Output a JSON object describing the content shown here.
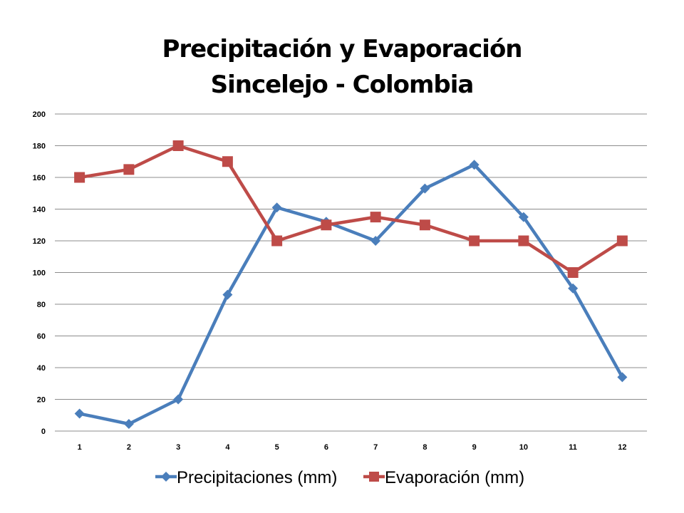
{
  "chart_data": {
    "type": "line",
    "title": [
      "Precipitación y Evaporación",
      "Sincelejo - Colombia"
    ],
    "xlabel": "",
    "ylabel": "",
    "categories": [
      "1",
      "2",
      "3",
      "4",
      "5",
      "6",
      "7",
      "8",
      "9",
      "10",
      "11",
      "12"
    ],
    "ylim": [
      0,
      200
    ],
    "yticks": [
      "0",
      "20",
      "40",
      "60",
      "80",
      "100",
      "120",
      "140",
      "160",
      "180",
      "200"
    ],
    "grid": true,
    "legend_position": "bottom",
    "series": [
      {
        "name": "Precipitaciones (mm)",
        "color": "#4a7ebb",
        "marker": "diamond",
        "values": [
          11,
          4.5,
          20,
          86,
          141,
          132,
          120,
          153,
          168,
          135,
          90,
          34
        ]
      },
      {
        "name": "Evaporación (mm)",
        "color": "#be4b48",
        "marker": "square",
        "values": [
          160,
          165,
          180,
          170,
          120,
          130,
          135,
          130,
          120,
          120,
          100,
          120
        ]
      }
    ]
  }
}
